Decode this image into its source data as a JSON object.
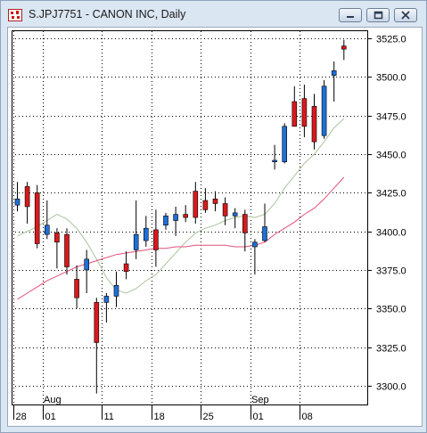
{
  "window": {
    "title": "S.JPJ7751 - CANON INC, Daily",
    "icons": {
      "app": "chart-app-icon",
      "minimize": "minimize-icon",
      "restore": "restore-icon",
      "close": "close-icon"
    }
  },
  "chart_data": {
    "type": "candlestick",
    "symbol": "S.JPJ7751",
    "company": "CANON INC",
    "interval": "Daily",
    "ylim": [
      3285,
      3530
    ],
    "yticks": [
      "3525.0",
      "3500.0",
      "3475.0",
      "3450.0",
      "3425.0",
      "3400.0",
      "3375.0",
      "3350.0",
      "3325.0",
      "3300.0"
    ],
    "ytick_values": [
      3525,
      3500,
      3475,
      3450,
      3425,
      3400,
      3375,
      3350,
      3325,
      3300
    ],
    "xticks": [
      {
        "label": "28",
        "index": 0
      },
      {
        "label": "01",
        "index": 3
      },
      {
        "label": "11",
        "index": 9
      },
      {
        "label": "18",
        "index": 14
      },
      {
        "label": "25",
        "index": 19
      },
      {
        "label": "01",
        "index": 24
      },
      {
        "label": "08",
        "index": 29
      }
    ],
    "month_labels": [
      {
        "label": "Aug",
        "index": 3
      },
      {
        "label": "Sep",
        "index": 24
      }
    ],
    "colors": {
      "up": "#1f6fd6",
      "down": "#d8191c",
      "ma_short": "#a8c49a",
      "ma_long": "#e0507a",
      "text": "#000000"
    },
    "candles": [
      {
        "o": 3417,
        "h": 3432,
        "l": 3413,
        "c": 3421
      },
      {
        "o": 3429,
        "h": 3432,
        "l": 3405,
        "c": 3416
      },
      {
        "o": 3425,
        "h": 3430,
        "l": 3389,
        "c": 3392
      },
      {
        "o": 3398,
        "h": 3420,
        "l": 3395,
        "c": 3404
      },
      {
        "o": 3399,
        "h": 3402,
        "l": 3376,
        "c": 3393
      },
      {
        "o": 3398,
        "h": 3402,
        "l": 3372,
        "c": 3377
      },
      {
        "o": 3369,
        "h": 3378,
        "l": 3350,
        "c": 3357
      },
      {
        "o": 3375,
        "h": 3388,
        "l": 3360,
        "c": 3382
      },
      {
        "o": 3354,
        "h": 3357,
        "l": 3295,
        "c": 3328
      },
      {
        "o": 3354,
        "h": 3360,
        "l": 3341,
        "c": 3358
      },
      {
        "o": 3358,
        "h": 3374,
        "l": 3351,
        "c": 3365
      },
      {
        "o": 3379,
        "h": 3387,
        "l": 3369,
        "c": 3374
      },
      {
        "o": 3388,
        "h": 3420,
        "l": 3382,
        "c": 3398
      },
      {
        "o": 3394,
        "h": 3410,
        "l": 3390,
        "c": 3402
      },
      {
        "o": 3401,
        "h": 3414,
        "l": 3377,
        "c": 3388
      },
      {
        "o": 3404,
        "h": 3412,
        "l": 3401,
        "c": 3410
      },
      {
        "o": 3407,
        "h": 3416,
        "l": 3397,
        "c": 3411
      },
      {
        "o": 3411,
        "h": 3417,
        "l": 3406,
        "c": 3409
      },
      {
        "o": 3426,
        "h": 3432,
        "l": 3405,
        "c": 3409
      },
      {
        "o": 3420,
        "h": 3428,
        "l": 3412,
        "c": 3414
      },
      {
        "o": 3421,
        "h": 3426,
        "l": 3413,
        "c": 3418
      },
      {
        "o": 3418,
        "h": 3422,
        "l": 3404,
        "c": 3410
      },
      {
        "o": 3410,
        "h": 3415,
        "l": 3402,
        "c": 3412
      },
      {
        "o": 3411,
        "h": 3414,
        "l": 3387,
        "c": 3399
      },
      {
        "o": 3390,
        "h": 3395,
        "l": 3372,
        "c": 3393
      },
      {
        "o": 3394,
        "h": 3418,
        "l": 3393,
        "c": 3403
      },
      {
        "o": 3445,
        "h": 3456,
        "l": 3440,
        "c": 3446
      },
      {
        "o": 3445,
        "h": 3470,
        "l": 3444,
        "c": 3468
      },
      {
        "o": 3484,
        "h": 3494,
        "l": 3470,
        "c": 3468
      },
      {
        "o": 3486,
        "h": 3495,
        "l": 3461,
        "c": 3468
      },
      {
        "o": 3481,
        "h": 3489,
        "l": 3453,
        "c": 3458
      },
      {
        "o": 3462,
        "h": 3498,
        "l": 3460,
        "c": 3494
      },
      {
        "o": 3501,
        "h": 3510,
        "l": 3484,
        "c": 3504
      },
      {
        "o": 3520,
        "h": 3524,
        "l": 3511,
        "c": 3518
      }
    ],
    "ma_short": [
      3397,
      3400,
      3403,
      3407,
      3411,
      3408,
      3402,
      3393,
      3382,
      3370,
      3362,
      3360,
      3363,
      3368,
      3372,
      3379,
      3386,
      3393,
      3399,
      3402,
      3404,
      3407,
      3409,
      3410,
      3409,
      3411,
      3418,
      3428,
      3436,
      3444,
      3450,
      3458,
      3467,
      3473
    ],
    "ma_long": [
      3356,
      3360,
      3364,
      3368,
      3371,
      3374,
      3377,
      3379,
      3381,
      3383,
      3385,
      3386,
      3387,
      3388,
      3389,
      3389,
      3390,
      3390,
      3391,
      3391,
      3391,
      3391,
      3390,
      3390,
      3391,
      3393,
      3398,
      3402,
      3406,
      3411,
      3415,
      3421,
      3428,
      3435
    ]
  }
}
